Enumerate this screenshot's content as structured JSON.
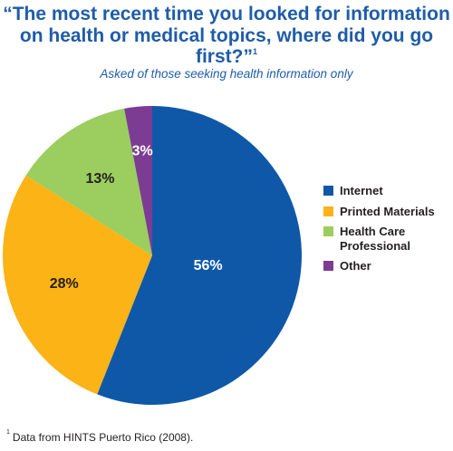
{
  "header": {
    "title": "“The most recent time you looked for information on health or medical topics, where did you go first?”",
    "title_note_mark": "1",
    "subtitle": "Asked of those seeking health information only"
  },
  "footnote": {
    "mark": "1",
    "text": "Data from HINTS Puerto Rico (2008)."
  },
  "chart_data": {
    "type": "pie",
    "title": "“The most recent time you looked for information on health or medical topics, where did you go first?”",
    "subtitle": "Asked of those seeking health information only",
    "legend_position": "right",
    "slices": [
      {
        "label": "Internet",
        "value": 56,
        "display": "56%",
        "color": "#0f58a8",
        "label_color": "#ffffff"
      },
      {
        "label": "Printed Materials",
        "value": 28,
        "display": "28%",
        "color": "#fbb316",
        "label_color": "#231f20"
      },
      {
        "label": "Health Care Professional",
        "value": 13,
        "display": "13%",
        "color": "#9ccd5f",
        "label_color": "#231f20"
      },
      {
        "label": "Other",
        "value": 3,
        "display": "3%",
        "color": "#7c3c94",
        "label_color": "#ffffff"
      }
    ]
  }
}
